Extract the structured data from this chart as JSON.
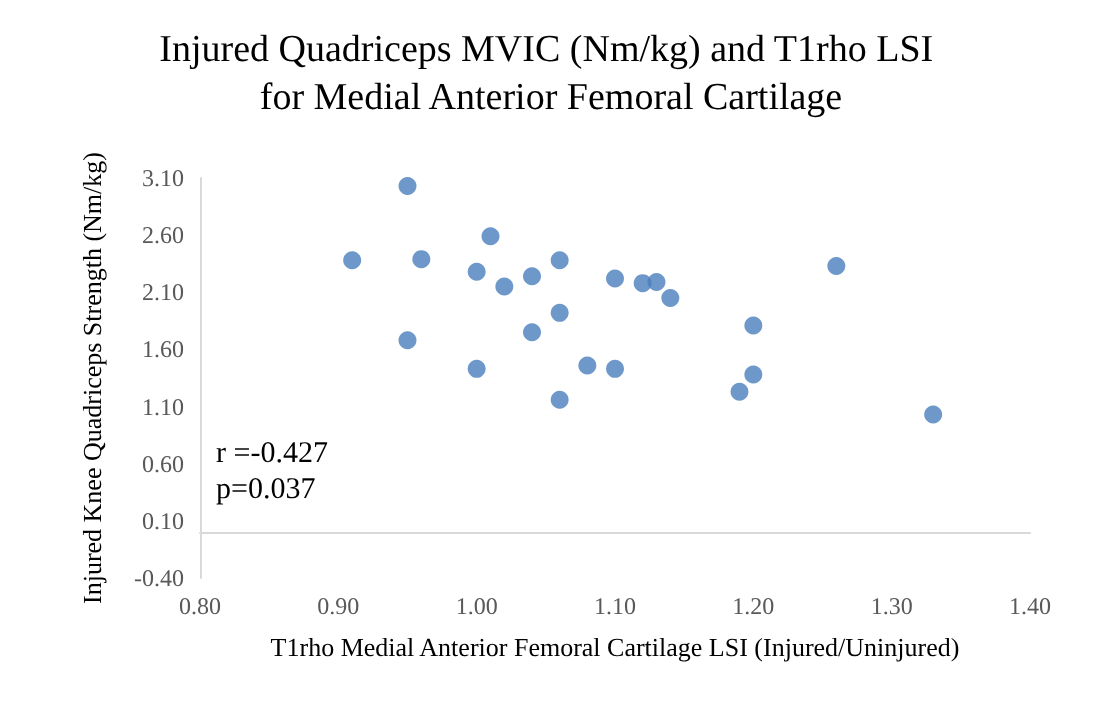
{
  "chart_data": {
    "type": "scatter",
    "title": "Injured Quadriceps MVIC (Nm/kg) and T1rho LSI for Medial Anterior Femoral Cartilage",
    "xlabel": "T1rho Medial Anterior Femoral Cartilage LSI (Injured/Uninjured)",
    "ylabel": "Injured Knee Quadriceps Strength (Nm/kg)",
    "x": [
      0.91,
      0.95,
      0.95,
      0.96,
      1.0,
      1.0,
      1.01,
      1.02,
      1.04,
      1.04,
      1.06,
      1.06,
      1.06,
      1.1,
      1.08,
      1.1,
      1.12,
      1.13,
      1.14,
      1.2,
      1.2,
      1.19,
      1.26,
      1.33
    ],
    "series": [
      {
        "color": "#4a7ebb",
        "values": [
          2.38,
          3.03,
          1.68,
          2.39,
          2.28,
          1.43,
          2.59,
          2.15,
          1.75,
          2.24,
          2.38,
          1.92,
          1.16,
          2.22,
          1.46,
          1.43,
          2.18,
          2.19,
          2.05,
          1.81,
          1.38,
          1.23,
          2.33,
          1.03
        ]
      }
    ],
    "annotations": [
      "r =-0.427\np=0.037"
    ],
    "xlim": [
      0.8,
      1.4
    ],
    "xticks": [
      {
        "value": 0.8,
        "label": "0.80"
      },
      {
        "value": 0.9,
        "label": "0.90"
      },
      {
        "value": 1.0,
        "label": "1.00"
      },
      {
        "value": 1.1,
        "label": "1.10"
      },
      {
        "value": 1.2,
        "label": "1.20"
      },
      {
        "value": 1.3,
        "label": "1.30"
      },
      {
        "value": 1.4,
        "label": "1.40"
      }
    ],
    "ylim": [
      -0.4,
      3.1
    ],
    "yticks": [
      {
        "value": -0.4,
        "label": "-0.40"
      },
      {
        "value": 0.1,
        "label": "0.10"
      },
      {
        "value": 0.6,
        "label": "0.60"
      },
      {
        "value": 1.1,
        "label": "1.10"
      },
      {
        "value": 1.6,
        "label": "1.60"
      },
      {
        "value": 2.1,
        "label": "2.10"
      },
      {
        "value": 2.6,
        "label": "2.60"
      },
      {
        "value": 3.1,
        "label": "3.10"
      }
    ],
    "grid": false,
    "marker": "circle"
  }
}
